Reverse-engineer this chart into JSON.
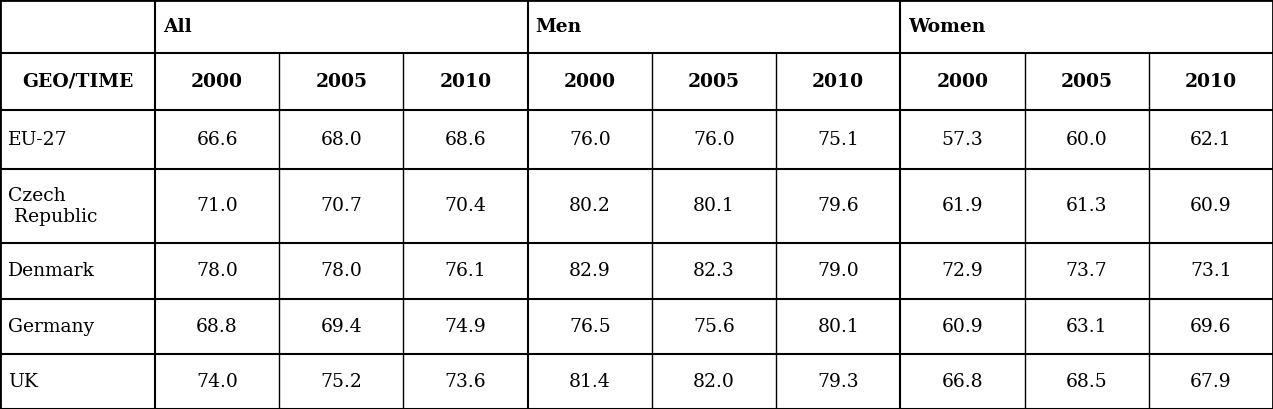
{
  "header_row": [
    "GEO/TIME",
    "2000",
    "2005",
    "2010",
    "2000",
    "2005",
    "2010",
    "2000",
    "2005",
    "2010"
  ],
  "rows": [
    [
      "EU-27",
      "66.6",
      "68.0",
      "68.6",
      "76.0",
      "76.0",
      "75.1",
      "57.3",
      "60.0",
      "62.1"
    ],
    [
      "Czech\n Republic",
      "71.0",
      "70.7",
      "70.4",
      "80.2",
      "80.1",
      "79.6",
      "61.9",
      "61.3",
      "60.9"
    ],
    [
      "Denmark",
      "78.0",
      "78.0",
      "76.1",
      "82.9",
      "82.3",
      "79.0",
      "72.9",
      "73.7",
      "73.1"
    ],
    [
      "Germany",
      "68.8",
      "69.4",
      "74.9",
      "76.5",
      "75.6",
      "80.1",
      "60.9",
      "63.1",
      "69.6"
    ],
    [
      "UK",
      "74.0",
      "75.2",
      "73.6",
      "81.4",
      "82.0",
      "79.3",
      "66.8",
      "68.5",
      "67.9"
    ]
  ],
  "group_labels": [
    "All",
    "Men",
    "Women"
  ],
  "background_color": "#ffffff",
  "line_color": "#000000",
  "text_color": "#000000",
  "font_size": 13.5,
  "header_font_size": 13.5
}
